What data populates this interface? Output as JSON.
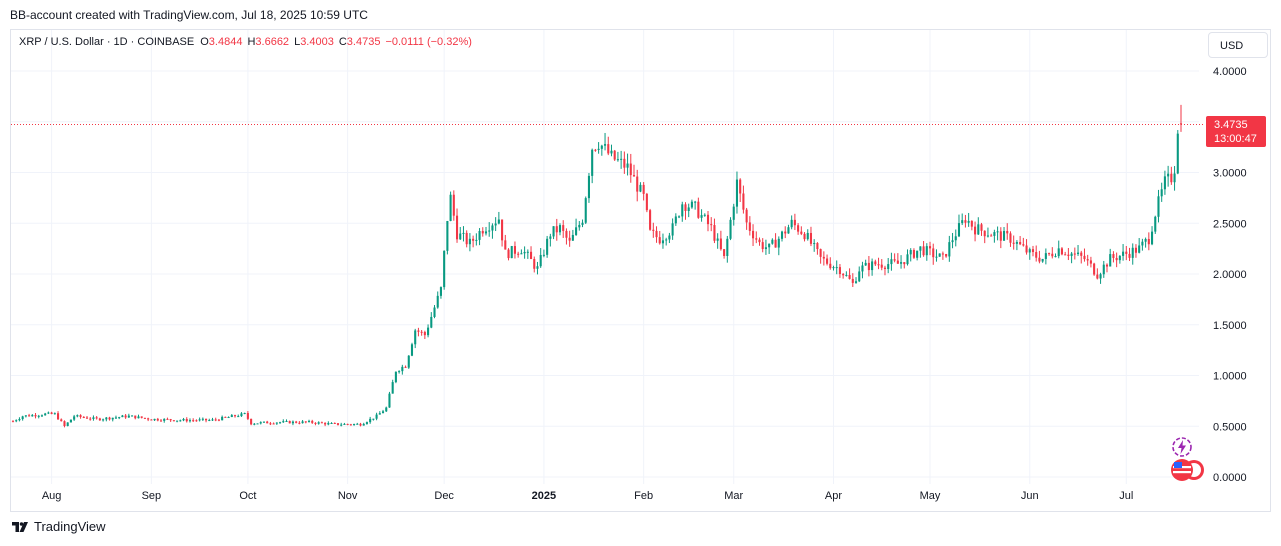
{
  "credit": "BB-account created with TradingView.com, Jul 18, 2025 10:59 UTC",
  "legend": {
    "symbol": "XRP / U.S. Dollar · 1D · COINBASE",
    "o_label": "O",
    "o": "3.4844",
    "h_label": "H",
    "h": "3.6662",
    "l_label": "L",
    "l": "3.4003",
    "c_label": "C",
    "c": "3.4735",
    "change": "−0.0111 (−0.32%)"
  },
  "currency_button": "USD",
  "last_price": {
    "price": "3.4735",
    "countdown": "13:00:47"
  },
  "brand": "TradingView",
  "icon_names": [
    "lightning-icon",
    "us-flag-icon"
  ],
  "colors": {
    "up": "#089981",
    "down": "#f23645",
    "grid": "#f0f3fa",
    "axis_text": "#131722"
  },
  "chart_data": {
    "type": "candlestick",
    "symbol": "XRP / U.S. Dollar",
    "interval": "1D",
    "exchange": "COINBASE",
    "last": {
      "open": 3.4844,
      "high": 3.6662,
      "low": 3.4003,
      "close": 3.4735
    },
    "ylim": [
      0,
      4.0
    ],
    "y_ticks": [
      "0.0000",
      "0.5000",
      "1.0000",
      "1.5000",
      "2.0000",
      "2.5000",
      "3.0000",
      "3.5000",
      "4.0000"
    ],
    "x_tick_labels": [
      "Aug",
      "Sep",
      "Oct",
      "Nov",
      "Dec",
      "2025",
      "Feb",
      "Mar",
      "Apr",
      "May",
      "Jun",
      "Jul"
    ],
    "grid": true,
    "close_path": [
      [
        "2024-07-20",
        0.55
      ],
      [
        "2024-07-23",
        0.6
      ],
      [
        "2024-07-30",
        0.62
      ],
      [
        "2024-08-02",
        0.62
      ],
      [
        "2024-08-05",
        0.5
      ],
      [
        "2024-08-08",
        0.6
      ],
      [
        "2024-08-15",
        0.57
      ],
      [
        "2024-08-25",
        0.6
      ],
      [
        "2024-09-01",
        0.57
      ],
      [
        "2024-09-10",
        0.56
      ],
      [
        "2024-09-20",
        0.56
      ],
      [
        "2024-09-30",
        0.62
      ],
      [
        "2024-10-02",
        0.53
      ],
      [
        "2024-10-10",
        0.54
      ],
      [
        "2024-10-20",
        0.54
      ],
      [
        "2024-10-28",
        0.52
      ],
      [
        "2024-11-05",
        0.52
      ],
      [
        "2024-11-10",
        0.6
      ],
      [
        "2024-11-13",
        0.68
      ],
      [
        "2024-11-16",
        1.05
      ],
      [
        "2024-11-19",
        1.1
      ],
      [
        "2024-11-22",
        1.45
      ],
      [
        "2024-11-25",
        1.4
      ],
      [
        "2024-11-30",
        1.85
      ],
      [
        "2024-12-02",
        2.55
      ],
      [
        "2024-12-03",
        2.75
      ],
      [
        "2024-12-05",
        2.4
      ],
      [
        "2024-12-09",
        2.3
      ],
      [
        "2024-12-13",
        2.45
      ],
      [
        "2024-12-18",
        2.55
      ],
      [
        "2024-12-20",
        2.2
      ],
      [
        "2024-12-25",
        2.25
      ],
      [
        "2024-12-30",
        2.05
      ],
      [
        "2025-01-03",
        2.4
      ],
      [
        "2025-01-06",
        2.45
      ],
      [
        "2025-01-09",
        2.3
      ],
      [
        "2025-01-13",
        2.55
      ],
      [
        "2025-01-16",
        3.25
      ],
      [
        "2025-01-18",
        3.3
      ],
      [
        "2025-01-22",
        3.15
      ],
      [
        "2025-01-27",
        3.05
      ],
      [
        "2025-02-01",
        2.75
      ],
      [
        "2025-02-03",
        2.4
      ],
      [
        "2025-02-06",
        2.35
      ],
      [
        "2025-02-10",
        2.45
      ],
      [
        "2025-02-13",
        2.7
      ],
      [
        "2025-02-17",
        2.65
      ],
      [
        "2025-02-22",
        2.45
      ],
      [
        "2025-02-26",
        2.15
      ],
      [
        "2025-03-02",
        2.9
      ],
      [
        "2025-03-05",
        2.5
      ],
      [
        "2025-03-09",
        2.3
      ],
      [
        "2025-03-12",
        2.25
      ],
      [
        "2025-03-15",
        2.35
      ],
      [
        "2025-03-19",
        2.5
      ],
      [
        "2025-03-23",
        2.4
      ],
      [
        "2025-03-28",
        2.15
      ],
      [
        "2025-04-03",
        2.05
      ],
      [
        "2025-04-07",
        1.9
      ],
      [
        "2025-04-09",
        2.05
      ],
      [
        "2025-04-14",
        2.1
      ],
      [
        "2025-04-21",
        2.1
      ],
      [
        "2025-04-28",
        2.25
      ],
      [
        "2025-05-05",
        2.15
      ],
      [
        "2025-05-08",
        2.35
      ],
      [
        "2025-05-12",
        2.55
      ],
      [
        "2025-05-15",
        2.45
      ],
      [
        "2025-05-20",
        2.4
      ],
      [
        "2025-05-26",
        2.35
      ],
      [
        "2025-06-01",
        2.2
      ],
      [
        "2025-06-05",
        2.15
      ],
      [
        "2025-06-10",
        2.25
      ],
      [
        "2025-06-14",
        2.2
      ],
      [
        "2025-06-18",
        2.15
      ],
      [
        "2025-06-22",
        2.0
      ],
      [
        "2025-06-26",
        2.15
      ],
      [
        "2025-07-01",
        2.2
      ],
      [
        "2025-07-05",
        2.25
      ],
      [
        "2025-07-08",
        2.35
      ],
      [
        "2025-07-10",
        2.6
      ],
      [
        "2025-07-13",
        2.9
      ],
      [
        "2025-07-15",
        2.95
      ],
      [
        "2025-07-16",
        3.05
      ],
      [
        "2025-07-17",
        3.45
      ],
      [
        "2025-07-18",
        3.4735
      ]
    ]
  }
}
